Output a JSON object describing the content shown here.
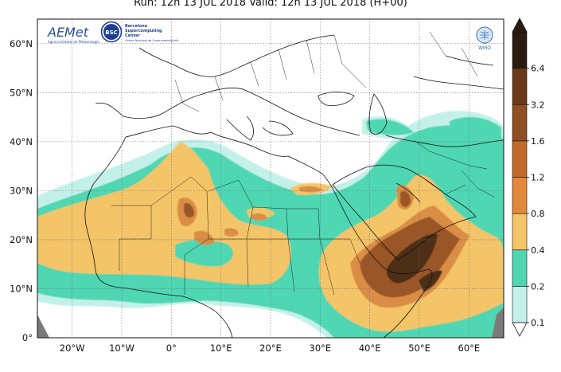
{
  "title": "Run: 12h 13 JUL 2018   Valid: 12h 13 JUL 2018 (H+00)",
  "logos": {
    "aemet": "AEMet",
    "aemet_sub": "Agencia Estatal de Meteorología",
    "bsc_badge": "BSC",
    "bsc_name_1": "Barcelona",
    "bsc_name_2": "Supercomputing",
    "bsc_name_3": "Center",
    "bsc_sub": "Centro Nacional de Supercomputación",
    "wmo": "WMO"
  },
  "map": {
    "lon_range": [
      -27,
      67
    ],
    "lat_range": [
      0,
      65
    ],
    "projection": "equirectangular",
    "grid": true,
    "lat_ticks": [
      {
        "value": 0,
        "label": "0°"
      },
      {
        "value": 10,
        "label": "10°N"
      },
      {
        "value": 20,
        "label": "20°N"
      },
      {
        "value": 30,
        "label": "30°N"
      },
      {
        "value": 40,
        "label": "40°N"
      },
      {
        "value": 50,
        "label": "50°N"
      },
      {
        "value": 60,
        "label": "60°N"
      }
    ],
    "lon_ticks": [
      {
        "value": -20,
        "label": "20°W"
      },
      {
        "value": -10,
        "label": "10°W"
      },
      {
        "value": 0,
        "label": "0°"
      },
      {
        "value": 10,
        "label": "10°E"
      },
      {
        "value": 20,
        "label": "20°E"
      },
      {
        "value": 30,
        "label": "30°E"
      },
      {
        "value": 40,
        "label": "40°E"
      },
      {
        "value": 50,
        "label": "50°E"
      },
      {
        "value": 60,
        "label": "60°E"
      }
    ]
  },
  "colorbar": {
    "levels": [
      "0.1",
      "0.2",
      "0.4",
      "0.8",
      "1.2",
      "1.6",
      "3.2",
      "6.4"
    ],
    "colors": [
      "#c4f0ea",
      "#4fd6b2",
      "#f4c468",
      "#e3883a",
      "#c36a2a",
      "#8f4f22",
      "#6b3a18",
      "#2a1b10"
    ],
    "extend": "both"
  },
  "colors": {
    "light_teal": "#c4f0ea",
    "teal": "#4fd6b2",
    "orange": "#f4c468",
    "dark_orange": "#d27e3a",
    "brown": "#9a5726",
    "dark_brown": "#4e2d14",
    "gray_land": "#7a7a7a"
  }
}
